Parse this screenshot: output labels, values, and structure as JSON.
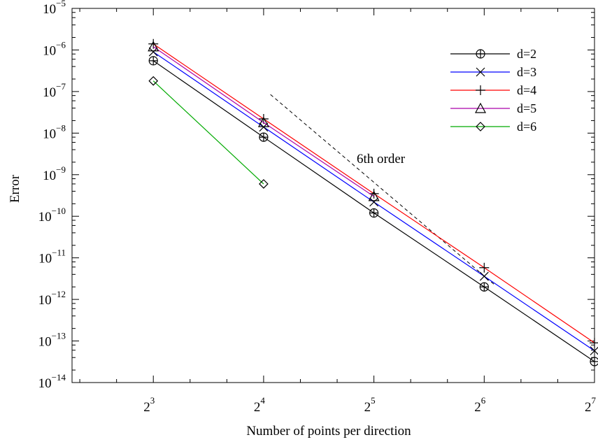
{
  "chart_data": {
    "type": "line",
    "xlabel": "Number of points per direction",
    "ylabel": "Error",
    "xscale": "log2",
    "yscale": "log10",
    "xlim": [
      4.8,
      128
    ],
    "ylim": [
      1e-14,
      1e-05
    ],
    "grid": false,
    "legend_position": "top-right",
    "x_ticks": [
      {
        "value": 8,
        "base": "2",
        "exp": "3"
      },
      {
        "value": 16,
        "base": "2",
        "exp": "4"
      },
      {
        "value": 32,
        "base": "2",
        "exp": "5"
      },
      {
        "value": 64,
        "base": "2",
        "exp": "6"
      },
      {
        "value": 128,
        "base": "2",
        "exp": "7"
      }
    ],
    "y_ticks": [
      {
        "value": 1e-05,
        "base": "10",
        "exp": "−5"
      },
      {
        "value": 1e-06,
        "base": "10",
        "exp": "−6"
      },
      {
        "value": 1e-07,
        "base": "10",
        "exp": "−7"
      },
      {
        "value": 1e-08,
        "base": "10",
        "exp": "−8"
      },
      {
        "value": 1e-09,
        "base": "10",
        "exp": "−9"
      },
      {
        "value": 1e-10,
        "base": "10",
        "exp": "−10"
      },
      {
        "value": 1e-11,
        "base": "10",
        "exp": "−11"
      },
      {
        "value": 1e-12,
        "base": "10",
        "exp": "−12"
      },
      {
        "value": 1e-13,
        "base": "10",
        "exp": "−13"
      },
      {
        "value": 1e-14,
        "base": "10",
        "exp": "−14"
      }
    ],
    "series": [
      {
        "name": "d=2",
        "color": "#000000",
        "marker": "circle-plus",
        "x": [
          8,
          16,
          32,
          64,
          128
        ],
        "y": [
          5.5e-07,
          8e-09,
          1.2e-10,
          2e-12,
          3.2e-14
        ]
      },
      {
        "name": "d=3",
        "color": "#0000ff",
        "marker": "x",
        "x": [
          8,
          16,
          32,
          64,
          128
        ],
        "y": [
          9e-07,
          1.4e-08,
          2.2e-10,
          3.6e-12,
          5.8e-14
        ]
      },
      {
        "name": "d=4",
        "color": "#ff0000",
        "marker": "plus",
        "x": [
          8,
          16,
          32,
          64,
          128
        ],
        "y": [
          1.4e-06,
          2.2e-08,
          3.5e-10,
          5.8e-12,
          9e-14
        ]
      },
      {
        "name": "d=5",
        "color": "#aa00aa",
        "marker": "triangle",
        "x": [
          8,
          16,
          32
        ],
        "y": [
          1.2e-06,
          1.8e-08,
          3e-10
        ]
      },
      {
        "name": "d=6",
        "color": "#00aa00",
        "marker": "diamond",
        "x": [
          8,
          16
        ],
        "y": [
          1.8e-07,
          6e-10
        ]
      }
    ],
    "reference_line": {
      "label": "6th order",
      "x": [
        16.7,
        68.5
      ],
      "y": [
        8.5e-08,
        2.2e-12
      ],
      "style": "dashed",
      "color": "#000000"
    }
  }
}
